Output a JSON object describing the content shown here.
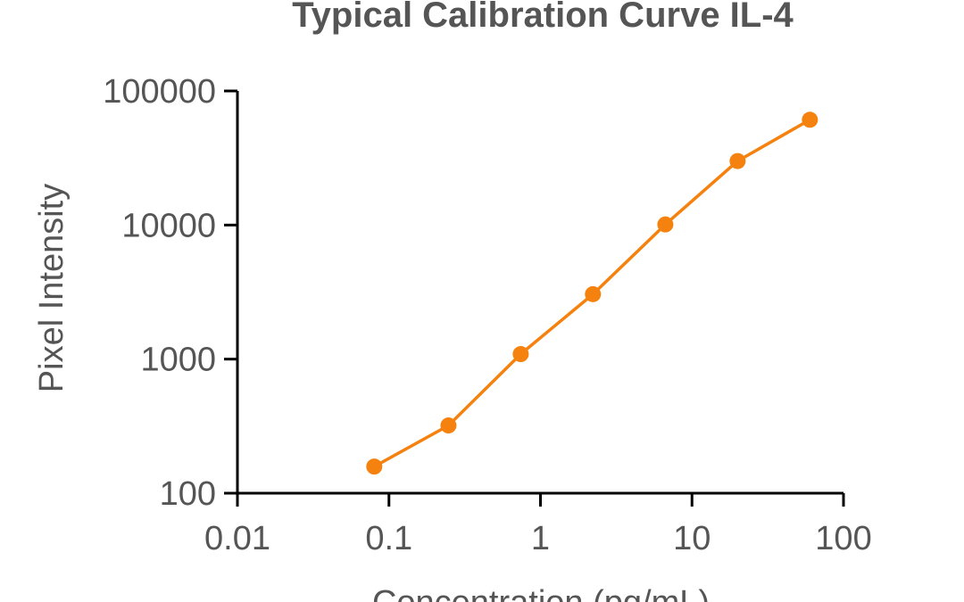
{
  "chart_data": {
    "type": "line",
    "title": "Typical Calibration Curve IL-4",
    "xlabel": "Concentration (pg/mL)",
    "ylabel": "Pixel Intensity",
    "xscale": "log",
    "yscale": "log",
    "xlim": [
      0.01,
      100
    ],
    "ylim": [
      100,
      100000
    ],
    "xticks": [
      "0.01",
      "0.1",
      "1",
      "10",
      "100"
    ],
    "yticks": [
      "100",
      "1000",
      "10000",
      "100000"
    ],
    "grid": false,
    "legend": "none",
    "series": [
      {
        "color": "#f5820f",
        "x": [
          0.08,
          0.247,
          0.741,
          2.22,
          6.67,
          20,
          60
        ],
        "y": [
          158,
          320,
          1090,
          3050,
          10100,
          30000,
          61000
        ]
      }
    ]
  }
}
